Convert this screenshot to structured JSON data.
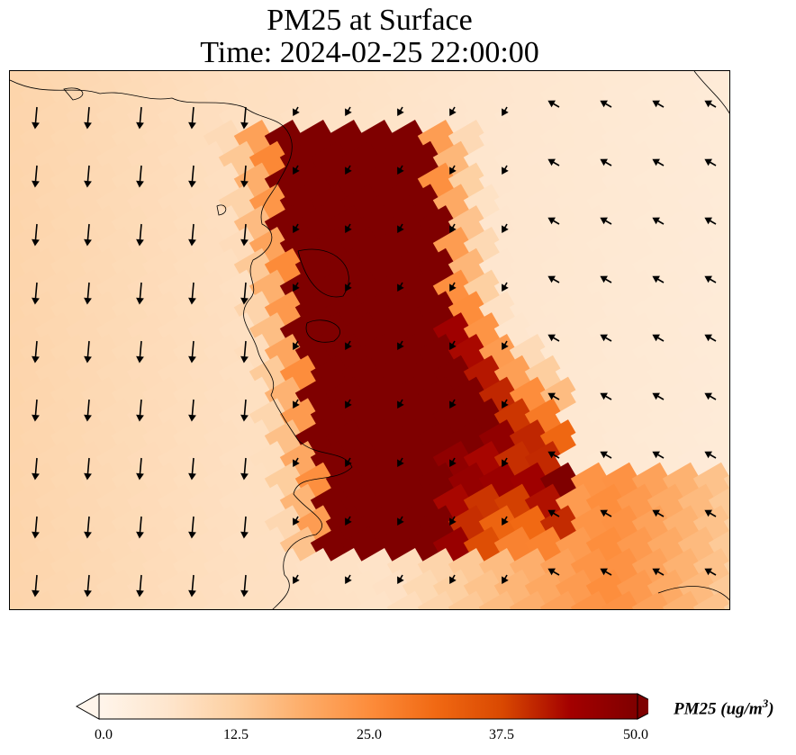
{
  "title": {
    "line1": "PM25 at Surface",
    "line2": "Time: 2024-02-25 22:00:00"
  },
  "map": {
    "variable": "PM25",
    "units": "ug/m3",
    "field_description": "Gridded surface PM2.5 concentration over a coastal region with a band of very high values (>50) running diagonally from top-center toward bottom-center, with wind arrows overlaid",
    "background_level_low": 5,
    "background_level_west": 10,
    "plume_peak": 50
  },
  "colorbar": {
    "label_var": "PM25 (ug/m",
    "label_exp": "3",
    "label_close": ")",
    "min": 0.0,
    "max": 50.0,
    "extend": "both",
    "ticks": [
      "0.0",
      "12.5",
      "25.0",
      "37.5",
      "50.0"
    ],
    "colors": [
      "#fff5eb",
      "#fee6ce",
      "#fdd0a2",
      "#fdae6b",
      "#fd8d3c",
      "#f16913",
      "#d94801",
      "#a30000",
      "#7f0000"
    ]
  }
}
